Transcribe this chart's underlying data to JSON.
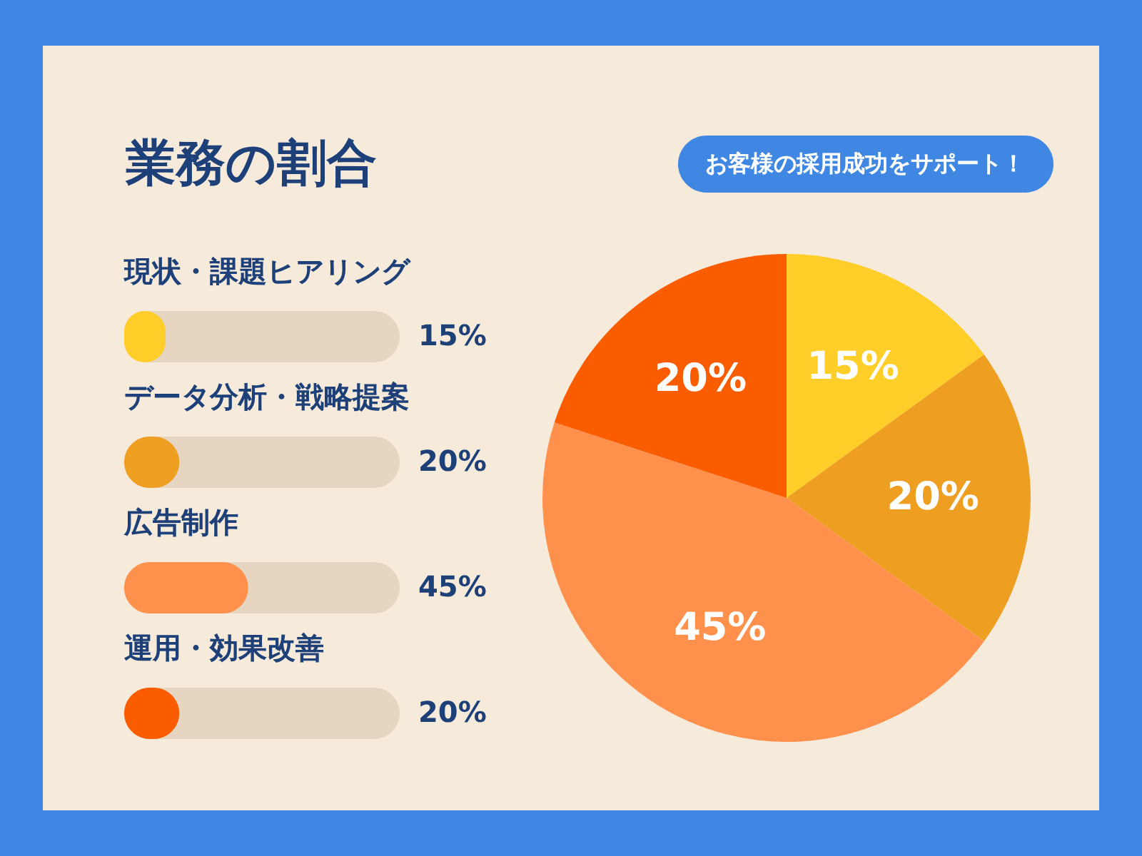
{
  "chart_data": [
    {
      "type": "bar",
      "orientation": "horizontal",
      "title": "業務の割合",
      "categories": [
        "現状・課題ヒアリング",
        "データ分析・戦略提案",
        "広告制作",
        "運用・効果改善"
      ],
      "values": [
        15,
        20,
        45,
        20
      ],
      "colors": [
        "#ffce29",
        "#ee9f22",
        "#ff914d",
        "#fa5c00"
      ],
      "value_labels": [
        "15%",
        "20%",
        "45%",
        "20%"
      ],
      "xlim": [
        0,
        100
      ],
      "tick_labels": "y"
    },
    {
      "type": "pie",
      "categories": [
        null,
        null,
        null,
        null
      ],
      "values": [
        15,
        20,
        45,
        20
      ],
      "colors": [
        "#ffce29",
        "#ee9f22",
        "#ff914d",
        "#fa5c00"
      ],
      "value_labels": [
        "15%",
        "20%",
        "45%",
        "20%"
      ],
      "annotations": [
        "お客様の採用成功をサポート！"
      ]
    }
  ]
}
